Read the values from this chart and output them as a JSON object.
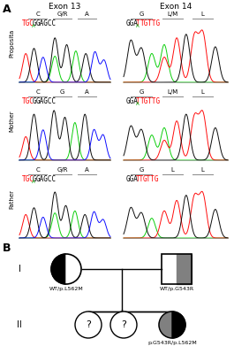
{
  "bg_color": "#ffffff",
  "exon13_title": "Exon 13",
  "exon14_title": "Exon 14",
  "row_labels": [
    "Proposita",
    "Mother",
    "Father"
  ],
  "exon13_codon_labels": [
    [
      "C",
      "G/R",
      "A"
    ],
    [
      "C",
      "G",
      "A"
    ],
    [
      "C",
      "G/R",
      "A"
    ]
  ],
  "exon14_codon_labels": [
    [
      "G",
      "L/M",
      "L"
    ],
    [
      "G",
      "L/M",
      "L"
    ],
    [
      "G",
      "L",
      "L"
    ]
  ],
  "pedigree": {
    "gen1_female_label": "WT/p.L562M",
    "gen1_male_label": "WT/p.G543R",
    "gen2_label": "p.G543R/p.L562M"
  }
}
